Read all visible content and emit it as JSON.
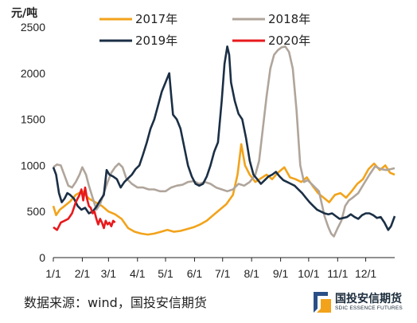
{
  "chart_data": {
    "type": "line",
    "unit_label": "元/吨",
    "y_ticks": [
      0,
      500,
      1000,
      1500,
      2000,
      2500
    ],
    "ylim": [
      0,
      2500
    ],
    "x_ticks": [
      "1/1",
      "2/1",
      "3/1",
      "4/1",
      "5/1",
      "6/1",
      "7/1",
      "8/1",
      "9/1",
      "10/1",
      "11/1",
      "12/1"
    ],
    "x_domain_days": [
      0,
      365
    ],
    "x_tick_days": [
      0,
      31,
      59,
      90,
      120,
      151,
      181,
      212,
      243,
      273,
      304,
      334
    ],
    "grid": false,
    "legend_position": "top",
    "series": [
      {
        "name": "2017年",
        "color": "#f2a31b",
        "points": [
          [
            0,
            560
          ],
          [
            3,
            460
          ],
          [
            7,
            520
          ],
          [
            12,
            560
          ],
          [
            18,
            610
          ],
          [
            24,
            680
          ],
          [
            31,
            720
          ],
          [
            38,
            640
          ],
          [
            45,
            600
          ],
          [
            52,
            560
          ],
          [
            59,
            500
          ],
          [
            66,
            470
          ],
          [
            73,
            420
          ],
          [
            80,
            320
          ],
          [
            87,
            280
          ],
          [
            94,
            260
          ],
          [
            101,
            250
          ],
          [
            108,
            260
          ],
          [
            115,
            280
          ],
          [
            122,
            300
          ],
          [
            129,
            280
          ],
          [
            136,
            290
          ],
          [
            143,
            310
          ],
          [
            150,
            330
          ],
          [
            157,
            360
          ],
          [
            164,
            400
          ],
          [
            171,
            460
          ],
          [
            178,
            520
          ],
          [
            185,
            580
          ],
          [
            192,
            680
          ],
          [
            197,
            900
          ],
          [
            201,
            1230
          ],
          [
            205,
            1000
          ],
          [
            210,
            900
          ],
          [
            216,
            820
          ],
          [
            222,
            860
          ],
          [
            228,
            900
          ],
          [
            234,
            850
          ],
          [
            240,
            920
          ],
          [
            247,
            980
          ],
          [
            253,
            870
          ],
          [
            259,
            850
          ],
          [
            265,
            820
          ],
          [
            271,
            870
          ],
          [
            277,
            780
          ],
          [
            283,
            700
          ],
          [
            289,
            650
          ],
          [
            295,
            600
          ],
          [
            301,
            680
          ],
          [
            307,
            700
          ],
          [
            313,
            650
          ],
          [
            319,
            720
          ],
          [
            325,
            800
          ],
          [
            331,
            850
          ],
          [
            337,
            960
          ],
          [
            343,
            1020
          ],
          [
            349,
            950
          ],
          [
            355,
            1000
          ],
          [
            360,
            920
          ],
          [
            365,
            900
          ]
        ]
      },
      {
        "name": "2018年",
        "color": "#b0a59b",
        "points": [
          [
            0,
            980
          ],
          [
            4,
            1010
          ],
          [
            8,
            1000
          ],
          [
            12,
            890
          ],
          [
            16,
            780
          ],
          [
            20,
            760
          ],
          [
            24,
            820
          ],
          [
            28,
            900
          ],
          [
            31,
            980
          ],
          [
            35,
            900
          ],
          [
            38,
            780
          ],
          [
            42,
            650
          ],
          [
            46,
            520
          ],
          [
            50,
            580
          ],
          [
            54,
            700
          ],
          [
            58,
            820
          ],
          [
            62,
            920
          ],
          [
            66,
            980
          ],
          [
            70,
            1020
          ],
          [
            74,
            980
          ],
          [
            78,
            860
          ],
          [
            84,
            800
          ],
          [
            90,
            760
          ],
          [
            96,
            760
          ],
          [
            102,
            740
          ],
          [
            108,
            740
          ],
          [
            114,
            720
          ],
          [
            120,
            720
          ],
          [
            126,
            760
          ],
          [
            132,
            780
          ],
          [
            138,
            790
          ],
          [
            144,
            820
          ],
          [
            150,
            830
          ],
          [
            156,
            800
          ],
          [
            162,
            820
          ],
          [
            168,
            800
          ],
          [
            174,
            760
          ],
          [
            180,
            740
          ],
          [
            186,
            720
          ],
          [
            192,
            740
          ],
          [
            198,
            800
          ],
          [
            204,
            780
          ],
          [
            210,
            820
          ],
          [
            216,
            900
          ],
          [
            220,
            1050
          ],
          [
            224,
            1400
          ],
          [
            228,
            1750
          ],
          [
            232,
            2050
          ],
          [
            236,
            2200
          ],
          [
            240,
            2250
          ],
          [
            244,
            2280
          ],
          [
            248,
            2290
          ],
          [
            252,
            2230
          ],
          [
            256,
            2050
          ],
          [
            260,
            1600
          ],
          [
            264,
            1000
          ],
          [
            268,
            820
          ],
          [
            272,
            840
          ],
          [
            278,
            780
          ],
          [
            284,
            720
          ],
          [
            290,
            450
          ],
          [
            294,
            330
          ],
          [
            297,
            260
          ],
          [
            300,
            230
          ],
          [
            304,
            320
          ],
          [
            308,
            400
          ],
          [
            312,
            560
          ],
          [
            316,
            620
          ],
          [
            320,
            650
          ],
          [
            326,
            700
          ],
          [
            332,
            800
          ],
          [
            338,
            900
          ],
          [
            344,
            990
          ],
          [
            350,
            960
          ],
          [
            356,
            950
          ],
          [
            361,
            960
          ],
          [
            365,
            970
          ]
        ]
      },
      {
        "name": "2019年",
        "color": "#1b2f45",
        "points": [
          [
            0,
            980
          ],
          [
            3,
            900
          ],
          [
            6,
            700
          ],
          [
            9,
            600
          ],
          [
            12,
            640
          ],
          [
            15,
            700
          ],
          [
            18,
            680
          ],
          [
            22,
            640
          ],
          [
            26,
            560
          ],
          [
            30,
            520
          ],
          [
            34,
            540
          ],
          [
            38,
            480
          ],
          [
            42,
            500
          ],
          [
            46,
            550
          ],
          [
            50,
            620
          ],
          [
            54,
            680
          ],
          [
            57,
            950
          ],
          [
            60,
            900
          ],
          [
            64,
            880
          ],
          [
            68,
            850
          ],
          [
            72,
            760
          ],
          [
            76,
            820
          ],
          [
            80,
            860
          ],
          [
            84,
            900
          ],
          [
            88,
            960
          ],
          [
            92,
            1000
          ],
          [
            96,
            1120
          ],
          [
            100,
            1250
          ],
          [
            104,
            1400
          ],
          [
            108,
            1500
          ],
          [
            112,
            1650
          ],
          [
            116,
            1800
          ],
          [
            120,
            1900
          ],
          [
            124,
            2000
          ],
          [
            126,
            1760
          ],
          [
            128,
            1550
          ],
          [
            132,
            1500
          ],
          [
            136,
            1400
          ],
          [
            140,
            1200
          ],
          [
            144,
            1000
          ],
          [
            148,
            880
          ],
          [
            152,
            800
          ],
          [
            156,
            780
          ],
          [
            160,
            800
          ],
          [
            164,
            880
          ],
          [
            168,
            1000
          ],
          [
            172,
            1150
          ],
          [
            176,
            1250
          ],
          [
            180,
            1700
          ],
          [
            183,
            2100
          ],
          [
            186,
            2290
          ],
          [
            188,
            2200
          ],
          [
            190,
            1900
          ],
          [
            194,
            1700
          ],
          [
            198,
            1560
          ],
          [
            202,
            1500
          ],
          [
            206,
            1300
          ],
          [
            210,
            1050
          ],
          [
            214,
            900
          ],
          [
            218,
            850
          ],
          [
            222,
            800
          ],
          [
            226,
            840
          ],
          [
            230,
            880
          ],
          [
            234,
            900
          ],
          [
            238,
            930
          ],
          [
            242,
            880
          ],
          [
            246,
            840
          ],
          [
            250,
            820
          ],
          [
            254,
            800
          ],
          [
            258,
            780
          ],
          [
            262,
            740
          ],
          [
            266,
            700
          ],
          [
            270,
            650
          ],
          [
            274,
            600
          ],
          [
            278,
            560
          ],
          [
            282,
            520
          ],
          [
            286,
            500
          ],
          [
            290,
            480
          ],
          [
            294,
            470
          ],
          [
            298,
            480
          ],
          [
            302,
            450
          ],
          [
            306,
            420
          ],
          [
            310,
            430
          ],
          [
            314,
            440
          ],
          [
            318,
            470
          ],
          [
            322,
            440
          ],
          [
            326,
            420
          ],
          [
            330,
            460
          ],
          [
            334,
            480
          ],
          [
            338,
            480
          ],
          [
            342,
            460
          ],
          [
            346,
            430
          ],
          [
            350,
            440
          ],
          [
            354,
            380
          ],
          [
            358,
            300
          ],
          [
            361,
            340
          ],
          [
            365,
            450
          ]
        ]
      },
      {
        "name": "2020年",
        "color": "#e8191c",
        "points": [
          [
            0,
            330
          ],
          [
            4,
            300
          ],
          [
            8,
            380
          ],
          [
            12,
            400
          ],
          [
            16,
            420
          ],
          [
            20,
            480
          ],
          [
            24,
            600
          ],
          [
            28,
            680
          ],
          [
            30,
            740
          ],
          [
            32,
            620
          ],
          [
            34,
            760
          ],
          [
            36,
            640
          ],
          [
            38,
            560
          ],
          [
            40,
            540
          ],
          [
            42,
            480
          ],
          [
            44,
            500
          ],
          [
            46,
            420
          ],
          [
            48,
            360
          ],
          [
            50,
            420
          ],
          [
            52,
            380
          ],
          [
            54,
            320
          ],
          [
            56,
            400
          ],
          [
            58,
            360
          ],
          [
            60,
            380
          ],
          [
            62,
            340
          ],
          [
            64,
            400
          ],
          [
            66,
            380
          ]
        ]
      }
    ]
  },
  "source": "数据来源：wind，国投安信期货",
  "logo": {
    "name_cn": "国投安信期货",
    "name_en": "SDIC ESSENCE FUTURES",
    "color_blue": "#2a4f86",
    "color_orange": "#f2a31b"
  }
}
